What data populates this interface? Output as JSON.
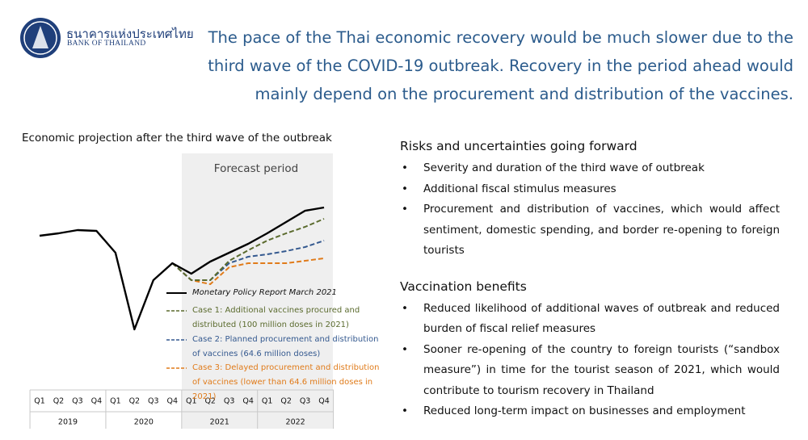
{
  "logo": {
    "thai": "ธนาคารแห่งประเทศไทย",
    "english": "BANK OF THAILAND"
  },
  "headline": "The pace of the Thai economic recovery would be much slower due to the third wave of the COVID-19 outbreak. Recovery in the period ahead would mainly depend on the procurement and distribution of the vaccines.",
  "chart_data": {
    "type": "line",
    "title": "Economic projection after the third wave of the outbreak",
    "annotation": "Forecast period",
    "categories": [
      "Q1",
      "Q2",
      "Q3",
      "Q4",
      "Q1",
      "Q2",
      "Q3",
      "Q4",
      "Q1",
      "Q2",
      "Q3",
      "Q4",
      "Q1",
      "Q2",
      "Q3",
      "Q4"
    ],
    "years": [
      "2019",
      "2020",
      "2021",
      "2022"
    ],
    "ylim": [
      0,
      100
    ],
    "series": [
      {
        "name": "Monetary Policy Report March 2021",
        "color": "#000000",
        "dash": false,
        "values": [
          69,
          70.5,
          72.5,
          72,
          58.5,
          11,
          41.5,
          52,
          45.5,
          53,
          58.5,
          64,
          70.5,
          77.5,
          84.5,
          86.5
        ]
      },
      {
        "name": "Case 1: Additional vaccines procured and distributed (100 million doses in 2021)",
        "color": "#5b6b2e",
        "dash": true,
        "values": [
          null,
          null,
          null,
          null,
          null,
          null,
          null,
          52,
          41.5,
          41.5,
          53.5,
          60,
          66,
          70.5,
          74.5,
          79.5
        ]
      },
      {
        "name": "Case 2: Planned procurement and distribution of vaccines (64.6 million doses)",
        "color": "#34598f",
        "dash": true,
        "values": [
          null,
          null,
          null,
          null,
          null,
          null,
          null,
          52,
          41.5,
          41.5,
          52,
          56,
          57.5,
          59.5,
          62,
          66
        ]
      },
      {
        "name": "Case 3: Delayed procurement and distribution of vaccines (lower than 64.6 million doses in 2021)",
        "color": "#e07b1a",
        "dash": true,
        "values": [
          null,
          null,
          null,
          null,
          null,
          null,
          null,
          52,
          41.5,
          39,
          49.5,
          52,
          52,
          52,
          53.5,
          55
        ]
      }
    ]
  },
  "sections": [
    {
      "heading": "Risks and uncertainties going forward",
      "items": [
        "Severity and duration of the third wave of outbreak",
        "Additional fiscal stimulus measures",
        "Procurement and distribution of vaccines, which would affect sentiment, domestic spending, and border re-opening to foreign tourists"
      ]
    },
    {
      "heading": "Vaccination benefits",
      "items": [
        "Reduced likelihood of additional waves of outbreak and reduced burden of fiscal relief measures",
        "Sooner re-opening of the country to foreign tourists (“sandbox measure”) in time for the tourist season of 2021, which would contribute to tourism recovery in Thailand",
        "Reduced long-term impact on businesses and employment"
      ]
    }
  ]
}
